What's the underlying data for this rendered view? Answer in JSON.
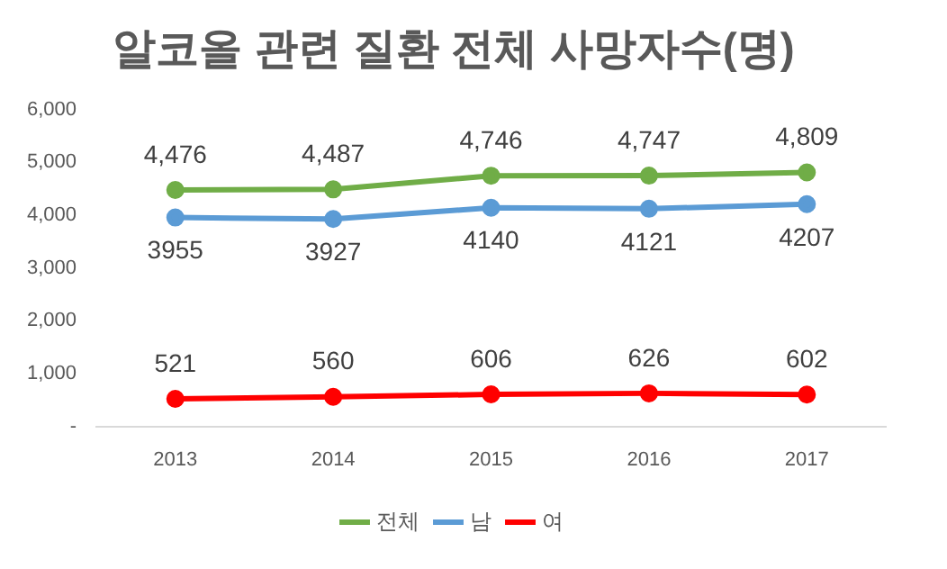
{
  "chart_data": {
    "type": "line",
    "title": "알코올 관련 질환 전체 사망자수(명)",
    "categories": [
      "2013",
      "2014",
      "2015",
      "2016",
      "2017"
    ],
    "series": [
      {
        "name": "전체",
        "color": "#70ad47",
        "values": [
          4476,
          4487,
          4746,
          4747,
          4809
        ],
        "value_labels": [
          "4,476",
          "4,487",
          "4,746",
          "4,747",
          "4,809"
        ]
      },
      {
        "name": "남",
        "color": "#5b9bd5",
        "values": [
          3955,
          3927,
          4140,
          4121,
          4207
        ],
        "value_labels": [
          "3955",
          "3927",
          "4140",
          "4121",
          "4207"
        ]
      },
      {
        "name": "여",
        "color": "#ff0000",
        "values": [
          521,
          560,
          606,
          626,
          602
        ],
        "value_labels": [
          "521",
          "560",
          "606",
          "626",
          "602"
        ]
      }
    ],
    "ylim": [
      0,
      6000
    ],
    "yticks": [
      {
        "value": 0,
        "label": "-"
      },
      {
        "value": 1000,
        "label": "1,000"
      },
      {
        "value": 2000,
        "label": "2,000"
      },
      {
        "value": 3000,
        "label": "3,000"
      },
      {
        "value": 4000,
        "label": "4,000"
      },
      {
        "value": 5000,
        "label": "5,000"
      },
      {
        "value": 6000,
        "label": "6,000"
      }
    ],
    "grid": false,
    "legend": "bottom",
    "marker": "circle",
    "line_style": "solid"
  }
}
